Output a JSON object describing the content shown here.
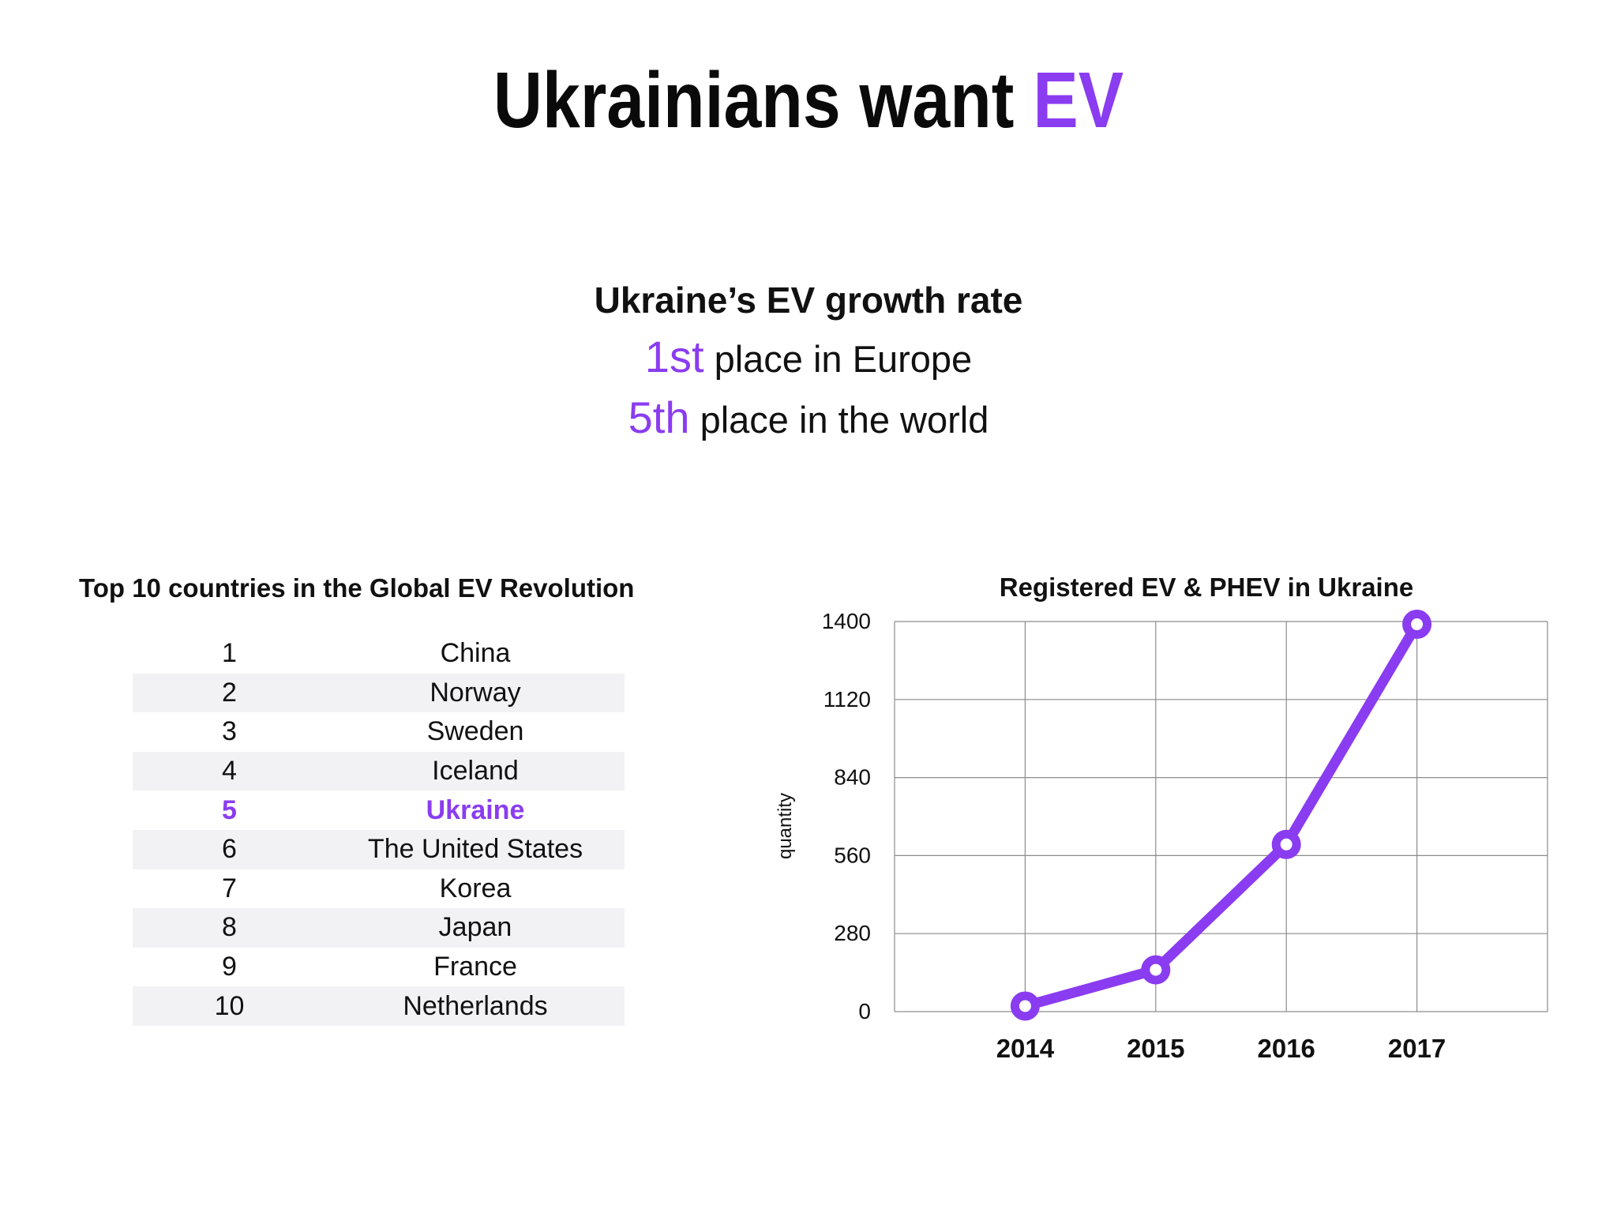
{
  "slide": {
    "title_main": "Ukrainians want",
    "title_accent": "EV"
  },
  "growth": {
    "heading": "Ukraine’s EV growth rate",
    "europe": {
      "value": "1st",
      "text": "place in Europe"
    },
    "world": {
      "value": "5th",
      "text": "place in the world"
    }
  },
  "ranking": {
    "title": "Top 10 countries in the Global EV Revolution",
    "highlight_rank": "5",
    "rows": [
      {
        "rank": "1",
        "country": "China"
      },
      {
        "rank": "2",
        "country": "Norway"
      },
      {
        "rank": "3",
        "country": "Sweden"
      },
      {
        "rank": "4",
        "country": "Iceland"
      },
      {
        "rank": "5",
        "country": "Ukraine"
      },
      {
        "rank": "6",
        "country": "The United States"
      },
      {
        "rank": "7",
        "country": "Korea"
      },
      {
        "rank": "8",
        "country": "Japan"
      },
      {
        "rank": "9",
        "country": "France"
      },
      {
        "rank": "10",
        "country": "Netherlands"
      }
    ]
  },
  "colors": {
    "accent": "#8a3cf0",
    "grid": "#8c8c8c",
    "text": "#111111",
    "row_alt": "#f2f2f4"
  },
  "chart_data": {
    "type": "line",
    "title": "Registered EV & PHEV in Ukraine",
    "xlabel": "",
    "ylabel": "quantity",
    "categories": [
      "2014",
      "2015",
      "2016",
      "2017"
    ],
    "series": [
      {
        "name": "Registered EV & PHEV",
        "values": [
          20,
          150,
          600,
          1390
        ]
      }
    ],
    "ylim": [
      0,
      1400
    ],
    "yticks": [
      0,
      280,
      560,
      840,
      1120,
      1400
    ],
    "grid": true,
    "marker": "open-circle"
  }
}
